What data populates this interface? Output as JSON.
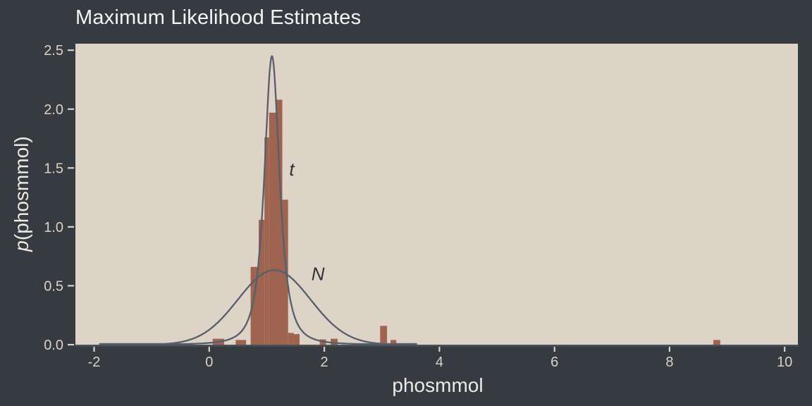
{
  "title": "Maximum Likelihood Estimates",
  "colors": {
    "background": "#363b42",
    "panel": "#ded3c7",
    "bar": "#9e6450",
    "curve": "#565f6b",
    "curve_label": "#2e333a",
    "title_text": "#f6f5f3",
    "axis_label_text": "#eee9e2",
    "tick_label_text": "#dcd1c3",
    "tick_mark": "#dcd1c3",
    "spine": "#4a5058"
  },
  "chart_data": {
    "type": "bar",
    "subtype": "density-histogram-with-fitted-curves",
    "title": "Maximum Likelihood Estimates",
    "xlabel": "phosmmol",
    "ylabel": "p(phosmmol)",
    "ylabel_italic": "p",
    "ylabel_rest": "(phosmmol)",
    "grid": false,
    "legend_position": "inline-annotations",
    "xlim": [
      -2.325,
      10.23
    ],
    "ylim": [
      0,
      2.555
    ],
    "xticks": [
      {
        "v": -2,
        "label": "-2"
      },
      {
        "v": 0,
        "label": "0"
      },
      {
        "v": 2,
        "label": "2"
      },
      {
        "v": 4,
        "label": "4"
      },
      {
        "v": 6,
        "label": "6"
      },
      {
        "v": 8,
        "label": "8"
      },
      {
        "v": 10,
        "label": "10"
      }
    ],
    "yticks": [
      {
        "v": 0.0,
        "label": "0.0"
      },
      {
        "v": 0.5,
        "label": "0.5"
      },
      {
        "v": 1.0,
        "label": "1.0"
      },
      {
        "v": 1.5,
        "label": "1.5"
      },
      {
        "v": 2.0,
        "label": "2.0"
      },
      {
        "v": 2.5,
        "label": "2.5"
      }
    ],
    "bin_width": 0.1,
    "bars": [
      {
        "from": 0.06,
        "to": 0.26,
        "height": 0.05
      },
      {
        "from": 0.46,
        "to": 0.64,
        "height": 0.04
      },
      {
        "from": 0.72,
        "to": 0.86,
        "height": 0.66
      },
      {
        "from": 0.86,
        "to": 0.96,
        "height": 1.06
      },
      {
        "from": 0.96,
        "to": 1.04,
        "height": 1.76
      },
      {
        "from": 1.04,
        "to": 1.16,
        "height": 1.97
      },
      {
        "from": 1.16,
        "to": 1.27,
        "height": 2.08
      },
      {
        "from": 1.27,
        "to": 1.37,
        "height": 1.23
      },
      {
        "from": 1.37,
        "to": 1.47,
        "height": 0.1
      },
      {
        "from": 1.47,
        "to": 1.57,
        "height": 0.09
      },
      {
        "from": 1.92,
        "to": 2.03,
        "height": 0.045
      },
      {
        "from": 2.11,
        "to": 2.23,
        "height": 0.05
      },
      {
        "from": 2.97,
        "to": 3.09,
        "height": 0.16
      },
      {
        "from": 3.15,
        "to": 3.25,
        "height": 0.04
      },
      {
        "from": 8.76,
        "to": 8.88,
        "height": 0.04
      }
    ],
    "curves": [
      {
        "name": "t",
        "shape": "student_t",
        "df": 2,
        "loc": 1.09,
        "scale": 0.144,
        "peak_density": 2.45,
        "range": [
          -1.9,
          3.6
        ],
        "label_at": {
          "x": 1.435,
          "y": 1.49
        }
      },
      {
        "name": "N",
        "shape": "normal",
        "loc": 1.13,
        "scale": 0.63,
        "peak_density": 0.633,
        "range": [
          -1.9,
          3.6
        ],
        "label_at": {
          "x": 1.89,
          "y": 0.6
        }
      }
    ]
  }
}
